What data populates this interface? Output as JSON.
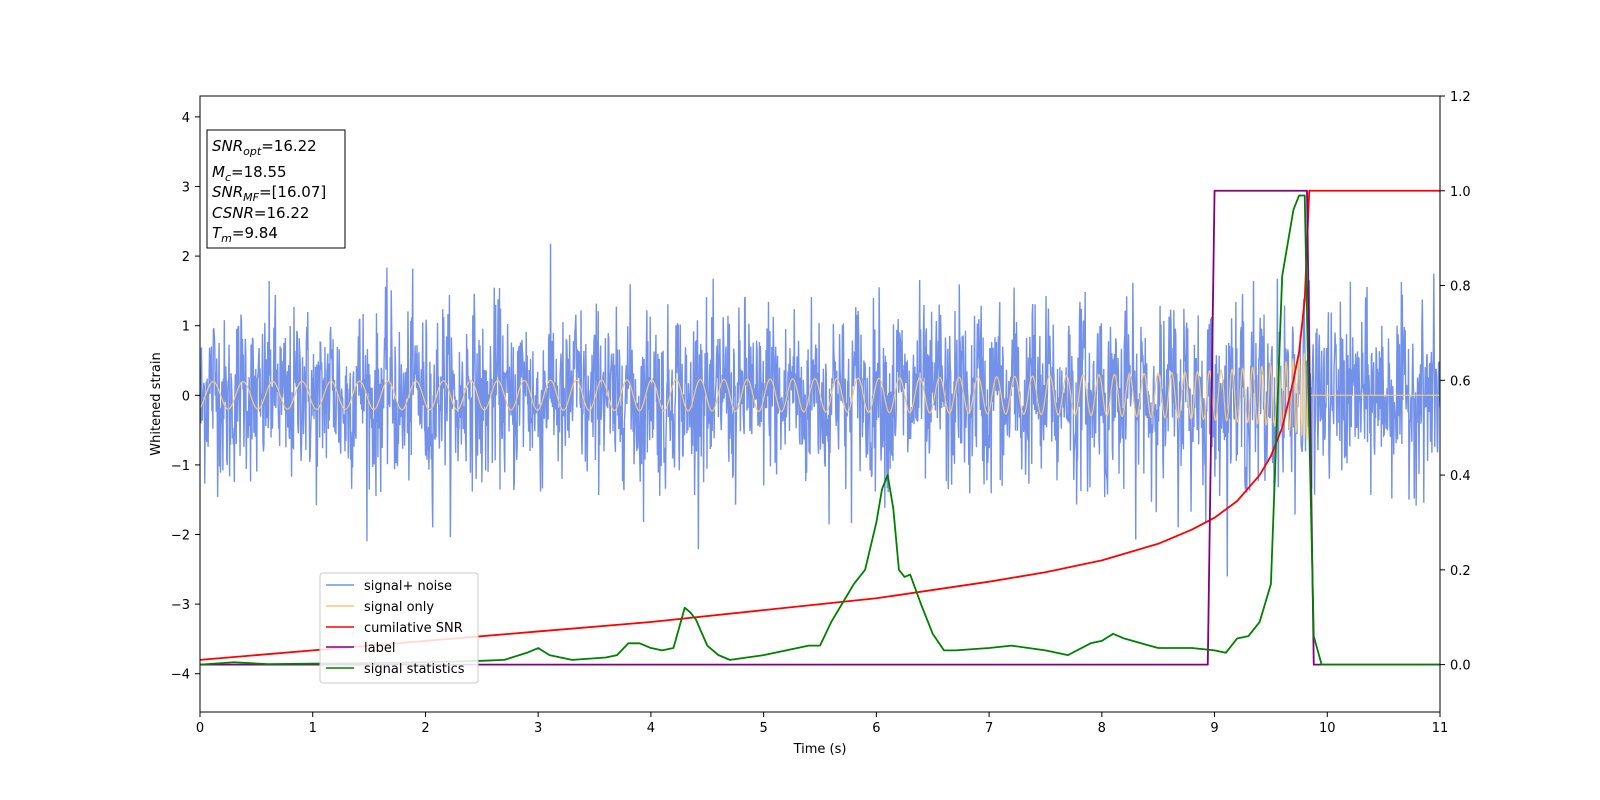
{
  "chart_data": {
    "type": "line",
    "xlabel": "Time (s)",
    "ylabel": "Whitened strain",
    "xlim": [
      0,
      11
    ],
    "ylim_left": [
      -4.55,
      4.3
    ],
    "ylim_right": [
      -0.1,
      1.2
    ],
    "xticks": [
      "0",
      "1",
      "2",
      "3",
      "4",
      "5",
      "6",
      "7",
      "8",
      "9",
      "10",
      "11"
    ],
    "yticks_left": [
      "−4",
      "−3",
      "−2",
      "−1",
      "0",
      "1",
      "2",
      "3",
      "4"
    ],
    "yticks_right": [
      "0.0",
      "0.2",
      "0.4",
      "0.6",
      "0.8",
      "1.0",
      "1.2"
    ],
    "info_box": {
      "snr_opt_base": "SNR",
      "snr_opt_sub": "opt",
      "snr_opt_val": "=16.22",
      "mc_base": "M",
      "mc_sub": "c",
      "mc_val": "=18.55",
      "snr_mf_base": "SNR",
      "snr_mf_sub": "MF",
      "snr_mf_val": "=[16.07]",
      "csnr_base": "CSNR",
      "csnr_val": "=16.22",
      "tm_base": "T",
      "tm_sub": "m",
      "tm_val": "=9.84"
    },
    "legend_position": "lower-left",
    "series": [
      {
        "name": "signal+ noise",
        "axis": "left",
        "color": "#7391e8",
        "noise_std": 0.6,
        "merger_time": 9.84
      },
      {
        "name": "signal only",
        "axis": "left",
        "color": "#f5c97a",
        "merger_time": 9.84,
        "peak_amplitude": 0.7
      },
      {
        "name": "cumilative SNR",
        "axis": "right",
        "color": "#ff0000",
        "x": [
          0,
          1,
          2,
          3,
          4,
          5,
          6,
          7,
          7.5,
          8,
          8.5,
          8.8,
          9.0,
          9.2,
          9.4,
          9.5,
          9.6,
          9.7,
          9.75,
          9.8,
          9.84,
          11
        ],
        "y": [
          0.01,
          0.03,
          0.05,
          0.07,
          0.09,
          0.115,
          0.14,
          0.175,
          0.195,
          0.22,
          0.255,
          0.285,
          0.31,
          0.345,
          0.4,
          0.44,
          0.5,
          0.6,
          0.66,
          0.77,
          1.0,
          1.0
        ]
      },
      {
        "name": "label",
        "axis": "right",
        "color": "#800080",
        "x": [
          0,
          8.94,
          9.0,
          9.82,
          9.88,
          11
        ],
        "y": [
          0,
          0,
          1,
          1,
          0,
          0
        ]
      },
      {
        "name": "signal statistics",
        "axis": "right",
        "color": "#008000",
        "x": [
          0,
          0.3,
          0.6,
          1.0,
          1.5,
          2.0,
          2.5,
          2.7,
          2.9,
          3.0,
          3.1,
          3.3,
          3.6,
          3.7,
          3.8,
          3.9,
          4.0,
          4.1,
          4.2,
          4.3,
          4.35,
          4.4,
          4.5,
          4.6,
          4.7,
          5.0,
          5.2,
          5.4,
          5.5,
          5.6,
          5.7,
          5.8,
          5.9,
          6.0,
          6.05,
          6.1,
          6.15,
          6.2,
          6.25,
          6.3,
          6.4,
          6.5,
          6.6,
          6.7,
          7.0,
          7.2,
          7.5,
          7.7,
          7.9,
          8.0,
          8.1,
          8.2,
          8.5,
          8.8,
          9.0,
          9.1,
          9.2,
          9.3,
          9.4,
          9.5,
          9.6,
          9.7,
          9.75,
          9.8,
          9.84,
          9.88,
          9.95,
          10.0,
          11
        ],
        "y": [
          0,
          0.005,
          0.001,
          0.002,
          0.003,
          0.005,
          0.008,
          0.01,
          0.025,
          0.035,
          0.02,
          0.01,
          0.015,
          0.02,
          0.045,
          0.045,
          0.035,
          0.03,
          0.035,
          0.12,
          0.11,
          0.095,
          0.04,
          0.02,
          0.01,
          0.02,
          0.03,
          0.04,
          0.04,
          0.09,
          0.13,
          0.17,
          0.2,
          0.3,
          0.37,
          0.4,
          0.33,
          0.2,
          0.185,
          0.19,
          0.125,
          0.065,
          0.03,
          0.03,
          0.035,
          0.04,
          0.03,
          0.02,
          0.045,
          0.05,
          0.065,
          0.055,
          0.035,
          0.035,
          0.03,
          0.025,
          0.055,
          0.06,
          0.09,
          0.17,
          0.82,
          0.96,
          0.99,
          0.99,
          0.5,
          0.06,
          0.0,
          0.0,
          0.0
        ]
      }
    ]
  }
}
